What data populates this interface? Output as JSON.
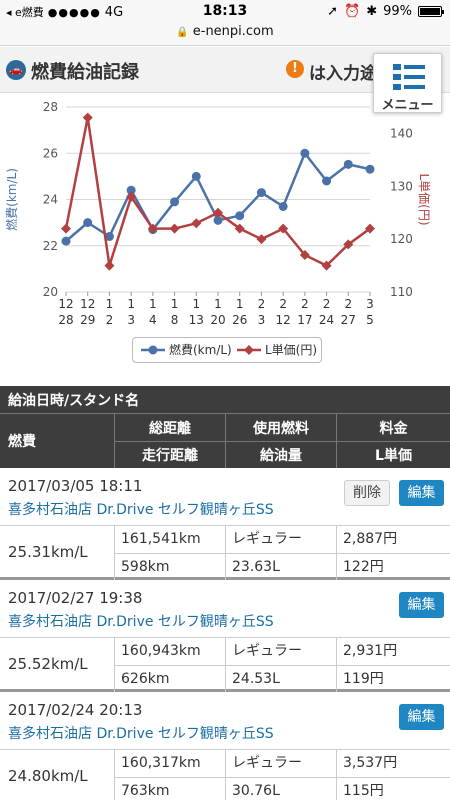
{
  "status_bar": {
    "back_app": "◂ e燃費",
    "signal": "●●●●●",
    "network": "4G",
    "time": "18:13",
    "battery": "99%",
    "battery_level": 0.99
  },
  "url_bar": {
    "url": "e-nenpi.com"
  },
  "header": {
    "title": "燃費給油記録",
    "note": "は入力途"
  },
  "menu": {
    "label": "メニュー"
  },
  "chart_data": {
    "type": "line",
    "categories": [
      [
        "12",
        "28"
      ],
      [
        "12",
        "29"
      ],
      [
        "1",
        "2"
      ],
      [
        "1",
        "3"
      ],
      [
        "1",
        "4"
      ],
      [
        "1",
        "8"
      ],
      [
        "1",
        "13"
      ],
      [
        "1",
        "20"
      ],
      [
        "1",
        "26"
      ],
      [
        "2",
        "3"
      ],
      [
        "2",
        "12"
      ],
      [
        "2",
        "17"
      ],
      [
        "2",
        "24"
      ],
      [
        "2",
        "27"
      ],
      [
        "3",
        "5"
      ]
    ],
    "series": [
      {
        "name": "燃費(km/L)",
        "axis": "left",
        "color": "#4a72a8",
        "marker": "circle",
        "values": [
          22.2,
          23.0,
          22.4,
          24.4,
          22.7,
          23.9,
          25.0,
          23.1,
          23.3,
          24.3,
          23.7,
          26.0,
          24.8,
          25.52,
          25.31
        ]
      },
      {
        "name": "L単価(円)",
        "axis": "right",
        "color": "#b24040",
        "marker": "diamond",
        "values": [
          122,
          143,
          115,
          128,
          122,
          122,
          123,
          125,
          122,
          120,
          122,
          117,
          115,
          119,
          122
        ]
      }
    ],
    "ylabel_left": "燃費(km/L)",
    "ylabel_right": "L単価(円)",
    "ylim_left": [
      20,
      28
    ],
    "yticks_left": [
      "20",
      "22",
      "24",
      "26",
      "28"
    ],
    "ylim_right": [
      110,
      145
    ],
    "yticks_right": [
      "110",
      "120",
      "130",
      "140"
    ],
    "grid": true,
    "legend": "bottom-center"
  },
  "table_header": {
    "date_station": "給油日時/スタンド名",
    "efficiency": "燃費",
    "total_distance": "総距離",
    "fuel_type": "使用燃料",
    "price": "料金",
    "trip_distance": "走行距離",
    "fuel_amount": "給油量",
    "unit_price": "L単価"
  },
  "buttons": {
    "delete": "削除",
    "edit": "編集"
  },
  "records": [
    {
      "datetime": "2017/03/05 18:11",
      "station": "喜多村石油店 Dr.Drive セルフ観晴ヶ丘SS",
      "efficiency": "25.31km/L",
      "total_distance": "161,541km",
      "fuel_type": "レギュラー",
      "price": "2,887円",
      "trip_distance": "598km",
      "fuel_amount": "23.63L",
      "unit_price": "122円",
      "deletable": true
    },
    {
      "datetime": "2017/02/27 19:38",
      "station": "喜多村石油店 Dr.Drive セルフ観晴ヶ丘SS",
      "efficiency": "25.52km/L",
      "total_distance": "160,943km",
      "fuel_type": "レギュラー",
      "price": "2,931円",
      "trip_distance": "626km",
      "fuel_amount": "24.53L",
      "unit_price": "119円",
      "deletable": false
    },
    {
      "datetime": "2017/02/24 20:13",
      "station": "喜多村石油店 Dr.Drive セルフ観晴ヶ丘SS",
      "efficiency": "24.80km/L",
      "total_distance": "160,317km",
      "fuel_type": "レギュラー",
      "price": "3,537円",
      "trip_distance": "763km",
      "fuel_amount": "30.76L",
      "unit_price": "115円",
      "deletable": false
    }
  ]
}
